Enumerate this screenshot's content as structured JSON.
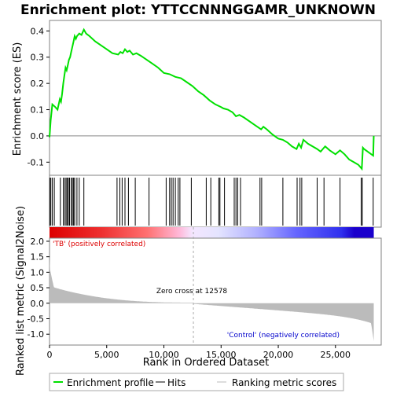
{
  "chart_data": {
    "type": "line",
    "title": "Enrichment plot: YTTCCNNNGGAMR_UNKNOWN",
    "es_panel": {
      "ylabel": "Enrichment score (ES)",
      "ylim": [
        -0.15,
        0.44
      ],
      "yticks": [
        -0.1,
        0.0,
        0.1,
        0.2,
        0.3,
        0.4
      ],
      "ytick_labels": [
        "-0.1",
        "0.0",
        "0.1",
        "0.2",
        "0.3",
        "0.4"
      ],
      "series": [
        {
          "name": "Enrichment profile",
          "color": "#00e000",
          "x": [
            0,
            100,
            250,
            500,
            700,
            900,
            1000,
            1100,
            1200,
            1300,
            1400,
            1500,
            1600,
            1700,
            1800,
            1900,
            2000,
            2100,
            2200,
            2300,
            2400,
            2600,
            2800,
            3000,
            3200,
            3500,
            4000,
            4500,
            5000,
            5500,
            6000,
            6200,
            6400,
            6600,
            6800,
            7000,
            7300,
            7600,
            8000,
            8500,
            9000,
            9500,
            10000,
            10500,
            11000,
            11500,
            12000,
            12500,
            13000,
            13500,
            14000,
            14500,
            15000,
            15200,
            15600,
            16000,
            16300,
            16600,
            17000,
            17500,
            18000,
            18500,
            18700,
            19000,
            19500,
            20000,
            20400,
            20800,
            21200,
            21600,
            21800,
            22000,
            22200,
            22600,
            23000,
            23400,
            23700,
            24000,
            24100,
            24500,
            25000,
            25400,
            25800,
            26200,
            26600,
            27000,
            27300,
            27400,
            27500,
            28300,
            28350
          ],
          "y": [
            -0.005,
            0.06,
            0.12,
            0.11,
            0.1,
            0.14,
            0.13,
            0.16,
            0.2,
            0.23,
            0.26,
            0.25,
            0.27,
            0.29,
            0.3,
            0.32,
            0.34,
            0.36,
            0.38,
            0.37,
            0.38,
            0.39,
            0.385,
            0.405,
            0.39,
            0.38,
            0.36,
            0.345,
            0.33,
            0.315,
            0.31,
            0.32,
            0.315,
            0.33,
            0.32,
            0.325,
            0.31,
            0.315,
            0.305,
            0.29,
            0.275,
            0.26,
            0.24,
            0.235,
            0.225,
            0.22,
            0.205,
            0.19,
            0.17,
            0.155,
            0.135,
            0.12,
            0.11,
            0.105,
            0.1,
            0.09,
            0.075,
            0.08,
            0.07,
            0.055,
            0.04,
            0.025,
            0.035,
            0.025,
            0.005,
            -0.01,
            -0.015,
            -0.025,
            -0.04,
            -0.05,
            -0.03,
            -0.045,
            -0.015,
            -0.03,
            -0.04,
            -0.05,
            -0.06,
            -0.045,
            -0.04,
            -0.055,
            -0.07,
            -0.055,
            -0.07,
            -0.09,
            -0.1,
            -0.11,
            -0.125,
            -0.045,
            -0.05,
            -0.075,
            0.0
          ]
        }
      ]
    },
    "hits": [
      30,
      120,
      250,
      420,
      950,
      1200,
      1350,
      1450,
      1550,
      1650,
      1750,
      1900,
      2000,
      2100,
      2200,
      2400,
      2600,
      3000,
      5900,
      6150,
      6350,
      6600,
      6900,
      7500,
      8700,
      10200,
      10500,
      10650,
      10800,
      11000,
      11250,
      11400,
      12400,
      13700,
      14100,
      14800,
      14900,
      15300,
      16150,
      16300,
      16450,
      16700,
      18400,
      18550,
      20400,
      21650,
      21900,
      22050,
      23400,
      24000,
      25400,
      27250,
      27350,
      28300
    ],
    "metric_panel": {
      "ylabel": "Ranked list metric (Signal2Noise)",
      "ylim": [
        -1.35,
        2.1
      ],
      "yticks": [
        -1.0,
        -0.5,
        0.0,
        0.5,
        1.0,
        1.5,
        2.0
      ],
      "ytick_labels": [
        "-1.0",
        "-0.5",
        "0.0",
        "0.5",
        "1.0",
        "1.5",
        "2.0"
      ],
      "top_value": 1.15,
      "bottom_value": -1.25,
      "zero_cross_rank": 12578,
      "zero_cross_text": "Zero cross at 12578",
      "pos_label": "'TB' (positively correlated)",
      "neg_label": "'Control' (negatively correlated)"
    },
    "xlabel": "Rank in Ordered Dataset",
    "xlim": [
      0,
      29000
    ],
    "xticks": [
      0,
      5000,
      10000,
      15000,
      20000,
      25000
    ],
    "xtick_labels": [
      "0",
      "5,000",
      "10,000",
      "15,000",
      "20,000",
      "25,000"
    ],
    "dataset_size": 28350,
    "legend": [
      "Enrichment profile",
      "Hits",
      "Ranking metric scores"
    ],
    "colors": {
      "profile": "#00e000",
      "pos_text": "#dd0000",
      "neg_text": "#0000cc",
      "metric_fill": "#bbbbbb"
    }
  }
}
